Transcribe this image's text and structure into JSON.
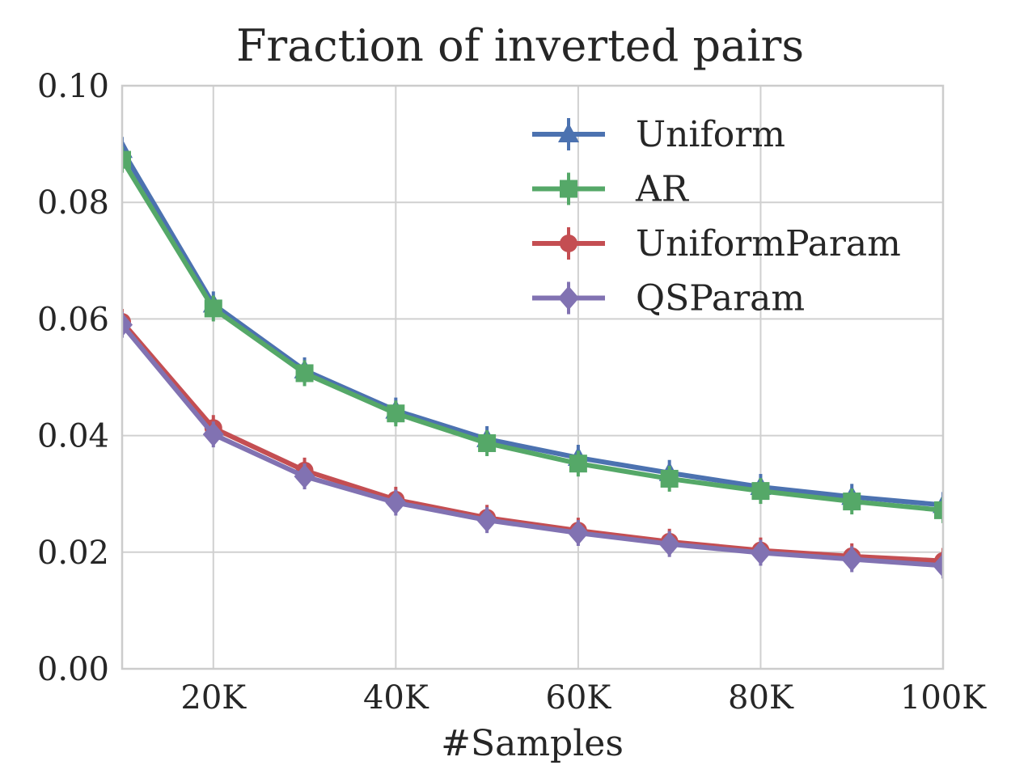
{
  "chart_data": {
    "type": "line",
    "title": "Fraction of inverted pairs",
    "xlabel": "#Samples",
    "ylabel": "",
    "x": [
      10000,
      20000,
      30000,
      40000,
      50000,
      60000,
      70000,
      80000,
      90000,
      100000
    ],
    "xlim": [
      10000,
      100000
    ],
    "ylim": [
      0.0,
      0.1
    ],
    "xticks": [
      20000,
      40000,
      60000,
      80000,
      100000
    ],
    "xtick_labels": [
      "20K",
      "40K",
      "60K",
      "80K",
      "100K"
    ],
    "yticks": [
      0.0,
      0.02,
      0.04,
      0.06,
      0.08,
      0.1
    ],
    "ytick_labels": [
      "0.00",
      "0.02",
      "0.04",
      "0.06",
      "0.08",
      "0.10"
    ],
    "grid": true,
    "legend_position": "top-right",
    "series": [
      {
        "name": "Uniform",
        "color": "#4c72b0",
        "marker": "triangle",
        "values": [
          0.089,
          0.0625,
          0.0512,
          0.0443,
          0.0394,
          0.0362,
          0.0336,
          0.0312,
          0.0295,
          0.0281
        ]
      },
      {
        "name": "AR",
        "color": "#55a868",
        "marker": "square",
        "values": [
          0.0873,
          0.0618,
          0.0507,
          0.0438,
          0.0387,
          0.0352,
          0.0326,
          0.0305,
          0.0287,
          0.0272
        ]
      },
      {
        "name": "UniformParam",
        "color": "#c44e52",
        "marker": "circle",
        "values": [
          0.0595,
          0.0413,
          0.034,
          0.029,
          0.0259,
          0.0237,
          0.0218,
          0.0203,
          0.0193,
          0.0185
        ]
      },
      {
        "name": "QSParam",
        "color": "#8172b2",
        "marker": "diamond",
        "values": [
          0.059,
          0.0402,
          0.033,
          0.0285,
          0.0255,
          0.0233,
          0.0214,
          0.0199,
          0.0188,
          0.0177
        ]
      }
    ]
  }
}
